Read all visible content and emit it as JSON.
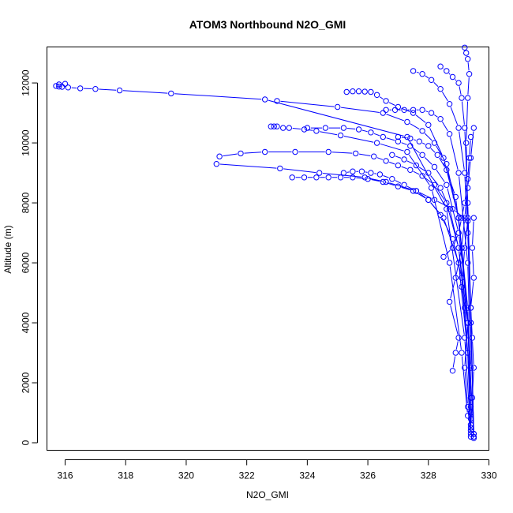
{
  "chart_data": {
    "type": "scatter",
    "title": "ATOM3 Northbound N2O_GMI",
    "xlabel": "N2O_GMI",
    "ylabel": "Altitude (m)",
    "xlim": [
      315.4,
      330.0
    ],
    "ylim": [
      -250,
      13200
    ],
    "x_ticks": [
      "316",
      "318",
      "320",
      "322",
      "324",
      "326",
      "328",
      "330"
    ],
    "y_ticks": [
      "0",
      "2000",
      "4000",
      "6000",
      "8000",
      "10000",
      "12000"
    ],
    "grid": false,
    "legend": "none",
    "marker": "open-circle",
    "connected": true,
    "color": "#0000ff",
    "series": [
      {
        "x": [
          329.4,
          329.3,
          329.2,
          329.3,
          329.1,
          329.2,
          329.3,
          328.8,
          328.2,
          327.6,
          326.6,
          325.9,
          324.4,
          323.1,
          321.0
        ],
        "y": [
          200,
          1200,
          2500,
          4000,
          5200,
          6500,
          7400,
          7800,
          8100,
          8400,
          8700,
          8850,
          9000,
          9150,
          9300
        ]
      },
      {
        "x": [
          321.1,
          321.8,
          322.6,
          323.6,
          324.7,
          325.6,
          326.2,
          326.6,
          327.0,
          327.4,
          327.8,
          328.2,
          328.6,
          329.0,
          329.3,
          329.4
        ],
        "y": [
          9550,
          9650,
          9700,
          9700,
          9700,
          9650,
          9550,
          9400,
          9250,
          9100,
          8900,
          8600,
          8000,
          6500,
          4000,
          1500
        ]
      },
      {
        "x": [
          329.3,
          329.1,
          328.7,
          328.1,
          327.3,
          326.3,
          325.1,
          324.3,
          323.9,
          323.4,
          323.2,
          323.0,
          322.9,
          322.8
        ],
        "y": [
          900,
          3000,
          6000,
          8500,
          9700,
          10000,
          10250,
          10400,
          10450,
          10500,
          10500,
          10550,
          10550,
          10550
        ]
      },
      {
        "x": [
          324.0,
          324.6,
          325.2,
          325.7,
          326.1,
          326.5,
          327.0,
          327.4,
          327.8,
          328.2,
          328.6,
          329.0,
          329.3,
          329.4
        ],
        "y": [
          10500,
          10500,
          10500,
          10450,
          10350,
          10200,
          10050,
          9900,
          9600,
          9200,
          8600,
          7000,
          4500,
          600
        ]
      },
      {
        "x": [
          329.4,
          329.2,
          328.6,
          327.3,
          322.6,
          319.5,
          317.8,
          317.0,
          316.5,
          316.1,
          315.9,
          315.8,
          315.7,
          315.8,
          316.0
        ],
        "y": [
          300,
          3500,
          7800,
          10200,
          11450,
          11650,
          11750,
          11800,
          11820,
          11850,
          11870,
          11880,
          11900,
          11950,
          11970
        ]
      },
      {
        "x": [
          323.0,
          325.0,
          326.5,
          327.3,
          327.8,
          328.2,
          328.6,
          329.0,
          329.3,
          329.5
        ],
        "y": [
          11400,
          11200,
          11000,
          10700,
          10400,
          10000,
          9300,
          7500,
          4000,
          200
        ]
      },
      {
        "x": [
          325.3,
          325.5,
          325.7,
          325.9,
          326.1,
          326.3,
          326.6,
          327.0,
          327.5,
          328.0,
          328.5,
          329.0,
          329.3,
          329.4
        ],
        "y": [
          11700,
          11720,
          11720,
          11710,
          11700,
          11600,
          11400,
          11200,
          11000,
          10600,
          9500,
          7500,
          4500,
          1000
        ]
      },
      {
        "x": [
          326.6,
          326.9,
          327.2,
          327.5,
          327.8,
          328.1,
          328.4,
          328.7,
          329.0,
          329.3,
          329.4
        ],
        "y": [
          11100,
          11100,
          11100,
          11100,
          11100,
          11000,
          10800,
          10300,
          9000,
          6000,
          2500
        ]
      },
      {
        "x": [
          323.5,
          323.9,
          324.3,
          324.7,
          325.1,
          325.5,
          326.0,
          326.5,
          327.0,
          327.5,
          328.0,
          328.5,
          329.0,
          329.3,
          329.4
        ],
        "y": [
          8850,
          8850,
          8850,
          8850,
          8850,
          8850,
          8800,
          8700,
          8550,
          8400,
          8100,
          7500,
          6000,
          3000,
          400
        ]
      },
      {
        "x": [
          325.2,
          325.5,
          325.8,
          326.1,
          326.4,
          326.8,
          327.2,
          327.6,
          328.0,
          328.4,
          328.8,
          329.1,
          329.3,
          329.4
        ],
        "y": [
          9000,
          9050,
          9050,
          9000,
          8950,
          8800,
          8600,
          8400,
          8100,
          7600,
          6800,
          5500,
          3000,
          800
        ]
      },
      {
        "x": [
          327.5,
          327.8,
          328.1,
          328.4,
          328.7,
          329.0,
          329.2,
          329.3,
          329.4,
          329.5
        ],
        "y": [
          12400,
          12300,
          12100,
          11800,
          11300,
          10500,
          9000,
          7000,
          4000,
          150
        ]
      },
      {
        "x": [
          328.4,
          328.6,
          328.8,
          329.0,
          329.1,
          329.2,
          329.3,
          329.4,
          329.5
        ],
        "y": [
          12550,
          12400,
          12200,
          12000,
          11500,
          10500,
          8000,
          4500,
          300
        ]
      },
      {
        "x": [
          329.2,
          329.25,
          329.3,
          329.35,
          329.3,
          329.25,
          329.3,
          329.4,
          329.5
        ],
        "y": [
          13180,
          13000,
          12800,
          12300,
          11500,
          10000,
          7500,
          4000,
          300
        ]
      },
      {
        "x": [
          327.0,
          327.4,
          327.7,
          328.0,
          328.3,
          328.6,
          328.9,
          329.1,
          329.3,
          329.4
        ],
        "y": [
          10200,
          10150,
          10050,
          9900,
          9600,
          9100,
          8200,
          6500,
          4000,
          1200
        ]
      },
      {
        "x": [
          326.8,
          327.2,
          327.6,
          328.0,
          328.4,
          328.7,
          329.0,
          329.2,
          329.4
        ],
        "y": [
          9600,
          9450,
          9250,
          9000,
          8500,
          7800,
          6500,
          4500,
          1500
        ]
      },
      {
        "x": [
          328.8,
          328.9,
          329.0,
          328.7,
          328.9,
          329.1,
          329.2,
          329.3,
          329.4,
          329.5
        ],
        "y": [
          2400,
          3000,
          3500,
          4700,
          5500,
          6500,
          7500,
          8500,
          9500,
          10500
        ]
      },
      {
        "x": [
          328.5,
          328.8,
          329.0,
          329.1,
          329.2,
          329.3,
          329.35,
          329.4
        ],
        "y": [
          6200,
          6500,
          7000,
          7500,
          8000,
          8800,
          9500,
          10200
        ]
      },
      {
        "x": [
          329.4,
          329.45,
          329.5,
          329.45,
          329.4,
          329.5,
          329.45,
          329.5
        ],
        "y": [
          500,
          1500,
          2500,
          3500,
          4500,
          5500,
          6500,
          7500
        ]
      }
    ]
  }
}
